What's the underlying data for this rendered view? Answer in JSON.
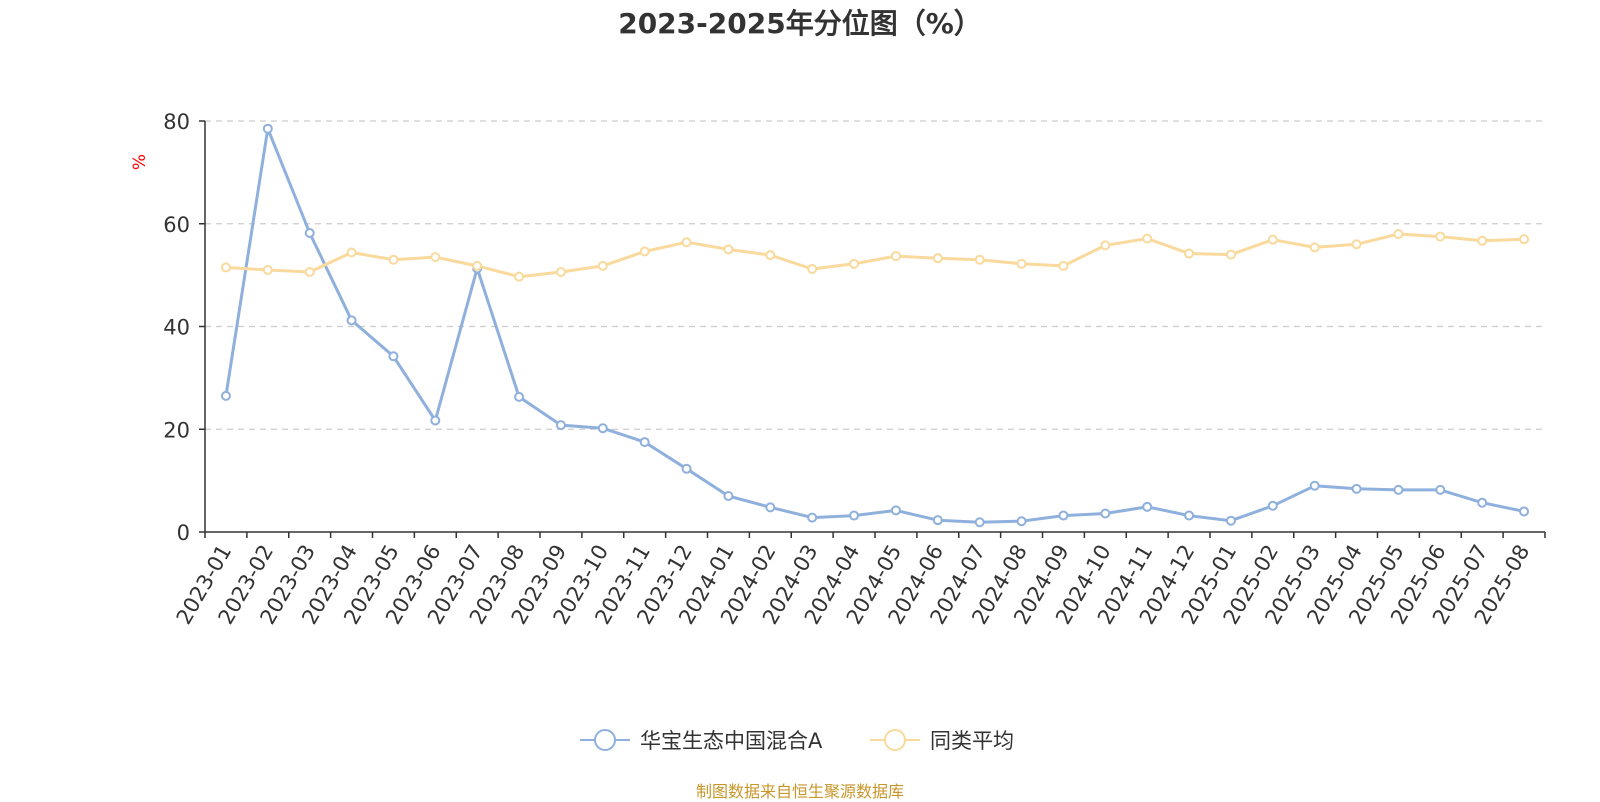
{
  "chart_data": {
    "type": "line",
    "title": "2023-2025年分位图（%）",
    "ylabel": "%",
    "xlabel": "",
    "ylim": [
      0,
      80
    ],
    "yticks": [
      0,
      20,
      40,
      60,
      80
    ],
    "grid": true,
    "legend_position": "bottom",
    "categories": [
      "2023-01",
      "2023-02",
      "2023-03",
      "2023-04",
      "2023-05",
      "2023-06",
      "2023-07",
      "2023-08",
      "2023-09",
      "2023-10",
      "2023-11",
      "2023-12",
      "2024-01",
      "2024-02",
      "2024-03",
      "2024-04",
      "2024-05",
      "2024-06",
      "2024-07",
      "2024-08",
      "2024-09",
      "2024-10",
      "2024-11",
      "2024-12",
      "2025-01",
      "2025-02",
      "2025-03",
      "2025-04",
      "2025-05",
      "2025-06",
      "2025-07",
      "2025-08"
    ],
    "series": [
      {
        "name": "华宝生态中国混合A",
        "color": "#8fb0dc",
        "values": [
          26.5,
          78.5,
          58.2,
          41.2,
          34.2,
          21.7,
          51.3,
          26.3,
          20.8,
          20.2,
          17.5,
          12.3,
          7.0,
          4.8,
          2.8,
          3.2,
          4.2,
          2.3,
          1.9,
          2.1,
          3.2,
          3.6,
          4.9,
          3.2,
          2.2,
          5.1,
          9.0,
          8.4,
          8.2,
          8.2,
          5.7,
          4.0
        ]
      },
      {
        "name": "同类平均",
        "color": "#f9d99c",
        "values": [
          51.5,
          51.0,
          50.6,
          54.4,
          53.0,
          53.5,
          51.8,
          49.7,
          50.6,
          51.8,
          54.6,
          56.4,
          55.0,
          53.9,
          51.2,
          52.2,
          53.7,
          53.3,
          53.0,
          52.2,
          51.8,
          55.8,
          57.1,
          54.2,
          54.0,
          56.9,
          55.4,
          56.0,
          58.0,
          57.5,
          56.7,
          57.0
        ]
      }
    ]
  },
  "source_note": "制图数据来自恒生聚源数据库",
  "colors": {
    "grid": "#cccccc",
    "axis": "#333333",
    "ylabel": "#ff0000",
    "source": "#c8962a"
  }
}
